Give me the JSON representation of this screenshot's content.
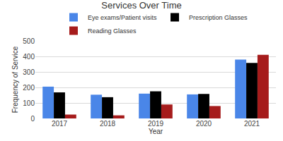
{
  "chart_data": {
    "type": "bar",
    "title": "Services Over Time",
    "x_label": "Year",
    "y_label": "Frequency of Service",
    "categories": [
      "2017",
      "2018",
      "2019",
      "2020",
      "2021"
    ],
    "series": [
      {
        "name": "Eye exams/Patient visits",
        "color": "#4a86e8",
        "values": [
          205,
          153,
          160,
          155,
          380
        ]
      },
      {
        "name": "Prescription Glasses",
        "color": "#000000",
        "values": [
          168,
          137,
          175,
          158,
          358
        ]
      },
      {
        "name": "Reading Glasses",
        "color": "#a61c1c",
        "values": [
          25,
          20,
          90,
          80,
          410
        ]
      }
    ],
    "ylim": [
      0,
      500
    ],
    "yticks": [
      0,
      100,
      200,
      300,
      400,
      500
    ],
    "grid": true,
    "legend": "top"
  }
}
